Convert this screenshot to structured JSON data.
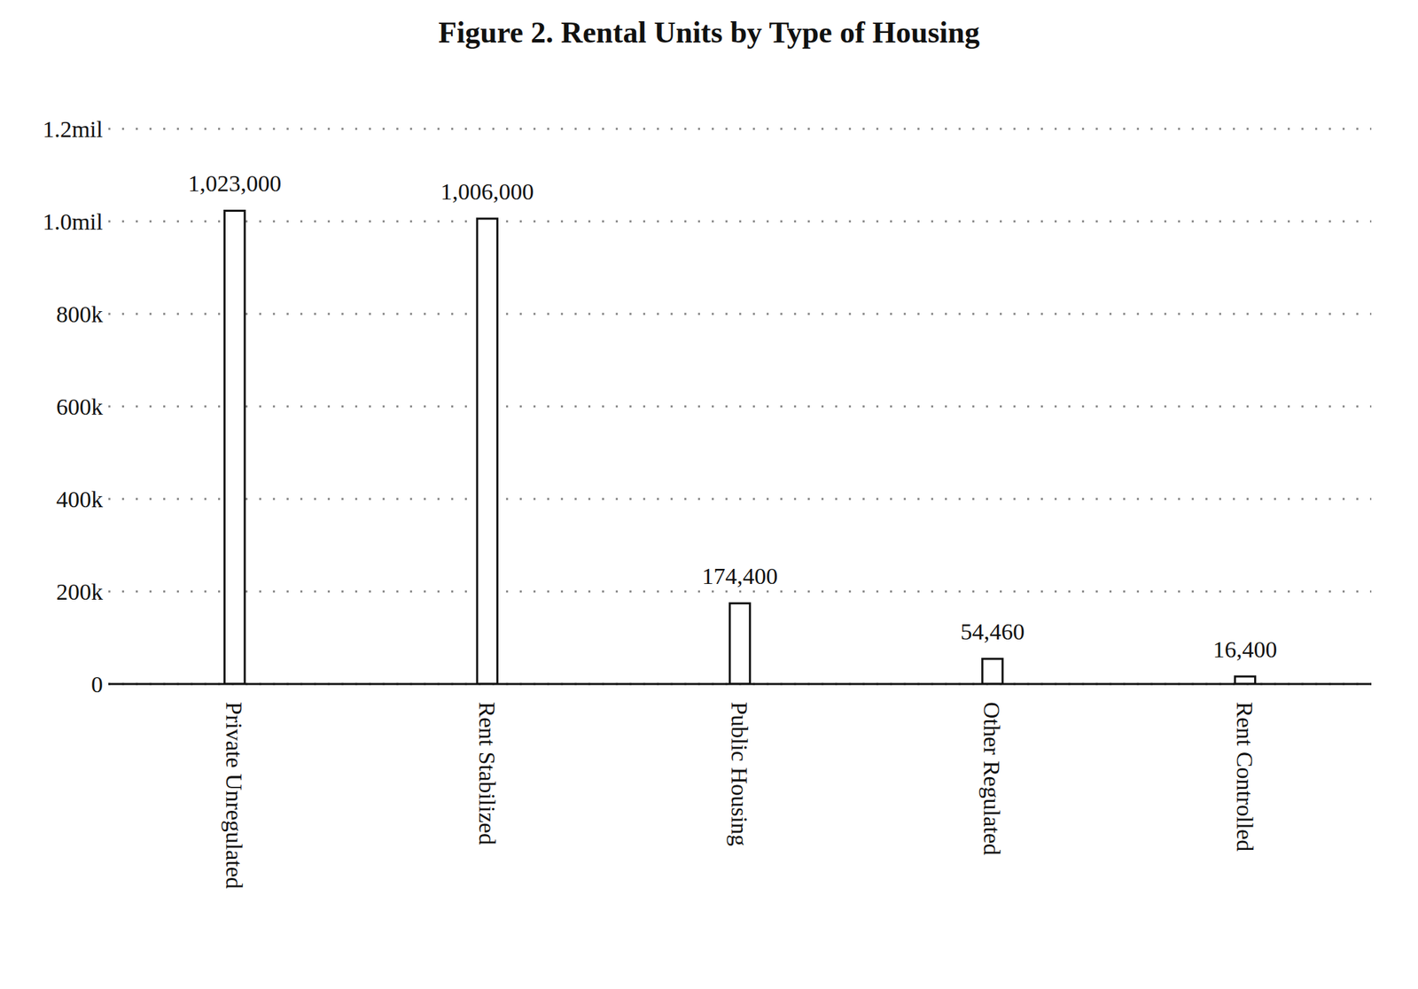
{
  "chart_data": {
    "type": "bar",
    "title": "Figure 2. Rental Units by Type of Housing",
    "categories": [
      "Private Unregulated",
      "Rent Stabilized",
      "Public Housing",
      "Other Regulated",
      "Rent Controlled"
    ],
    "values": [
      1023000,
      1006000,
      174400,
      54460,
      16400
    ],
    "value_labels": [
      "1,023,000",
      "1,006,000",
      "174,400",
      "54,460",
      "16,400"
    ],
    "color": "#ffffff",
    "ylim": [
      0,
      1200000
    ],
    "yticks": [
      0,
      {
        "value": 200000,
        "label": "200k"
      },
      {
        "value": 400000,
        "label": "400k"
      },
      {
        "value": 600000,
        "label": "600k"
      },
      {
        "value": 800000,
        "label": "800k"
      },
      {
        "value": 1000000,
        "label": "1.0mil"
      },
      {
        "value": 1200000,
        "label": "1.2mil"
      }
    ],
    "grid": true,
    "data_labels": true
  }
}
